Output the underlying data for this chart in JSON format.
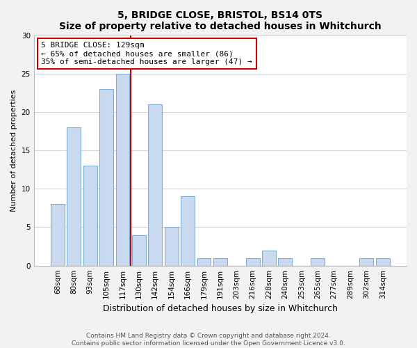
{
  "title": "5, BRIDGE CLOSE, BRISTOL, BS14 0TS",
  "subtitle": "Size of property relative to detached houses in Whitchurch",
  "xlabel": "Distribution of detached houses by size in Whitchurch",
  "ylabel": "Number of detached properties",
  "categories": [
    "68sqm",
    "80sqm",
    "93sqm",
    "105sqm",
    "117sqm",
    "130sqm",
    "142sqm",
    "154sqm",
    "166sqm",
    "179sqm",
    "191sqm",
    "203sqm",
    "216sqm",
    "228sqm",
    "240sqm",
    "253sqm",
    "265sqm",
    "277sqm",
    "289sqm",
    "302sqm",
    "314sqm"
  ],
  "values": [
    8,
    18,
    13,
    23,
    25,
    4,
    21,
    5,
    9,
    1,
    1,
    0,
    1,
    2,
    1,
    0,
    1,
    0,
    0,
    1,
    1
  ],
  "bar_color": "#c8d9f0",
  "bar_edge_color": "#7bafd4",
  "highlight_index": 5,
  "highlight_line_color": "#cc0000",
  "ylim": [
    0,
    30
  ],
  "yticks": [
    0,
    5,
    10,
    15,
    20,
    25,
    30
  ],
  "annotation_line1": "5 BRIDGE CLOSE: 129sqm",
  "annotation_line2": "← 65% of detached houses are smaller (86)",
  "annotation_line3": "35% of semi-detached houses are larger (47) →",
  "annotation_box_color": "#ffffff",
  "annotation_box_edge": "#cc0000",
  "footer_line1": "Contains HM Land Registry data © Crown copyright and database right 2024.",
  "footer_line2": "Contains public sector information licensed under the Open Government Licence v3.0.",
  "background_color": "#f2f2f2",
  "plot_bg_color": "#ffffff",
  "title_fontsize": 10,
  "subtitle_fontsize": 9,
  "ylabel_fontsize": 8,
  "xlabel_fontsize": 9,
  "tick_fontsize": 7.5,
  "annotation_fontsize": 8,
  "footer_fontsize": 6.5
}
